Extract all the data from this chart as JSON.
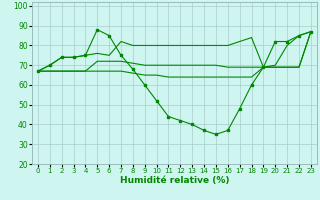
{
  "xlabel": "Humidité relative (%)",
  "background_color": "#cef5f0",
  "grid_color": "#aacccc",
  "line_color": "#008800",
  "xlim": [
    -0.5,
    23.5
  ],
  "ylim": [
    20,
    102
  ],
  "yticks": [
    20,
    30,
    40,
    50,
    60,
    70,
    80,
    90,
    100
  ],
  "xticks": [
    0,
    1,
    2,
    3,
    4,
    5,
    6,
    7,
    8,
    9,
    10,
    11,
    12,
    13,
    14,
    15,
    16,
    17,
    18,
    19,
    20,
    21,
    22,
    23
  ],
  "series": [
    {
      "name": "line1_upper",
      "x": [
        0,
        1,
        2,
        3,
        4,
        5,
        6,
        7,
        8,
        9,
        10,
        11,
        12,
        13,
        14,
        15,
        16,
        17,
        18,
        19,
        20,
        21,
        22,
        23
      ],
      "y": [
        67,
        70,
        74,
        74,
        75,
        76,
        75,
        82,
        80,
        80,
        80,
        80,
        80,
        80,
        80,
        80,
        80,
        82,
        84,
        69,
        70,
        80,
        85,
        87
      ],
      "has_markers": false
    },
    {
      "name": "line2_dip",
      "x": [
        0,
        1,
        2,
        3,
        4,
        5,
        6,
        7,
        8,
        9,
        10,
        11,
        12,
        13,
        14,
        15,
        16,
        17,
        18,
        19,
        20,
        21,
        22,
        23
      ],
      "y": [
        67,
        70,
        74,
        74,
        75,
        88,
        85,
        75,
        68,
        60,
        52,
        44,
        42,
        40,
        37,
        35,
        37,
        48,
        60,
        69,
        82,
        82,
        85,
        87
      ],
      "has_markers": true
    },
    {
      "name": "line3_lower_flat",
      "x": [
        0,
        1,
        2,
        3,
        4,
        5,
        6,
        7,
        8,
        9,
        10,
        11,
        12,
        13,
        14,
        15,
        16,
        17,
        18,
        19,
        20,
        21,
        22,
        23
      ],
      "y": [
        67,
        67,
        67,
        67,
        67,
        67,
        67,
        67,
        66,
        65,
        65,
        64,
        64,
        64,
        64,
        64,
        64,
        64,
        64,
        69,
        69,
        69,
        69,
        87
      ],
      "has_markers": false
    },
    {
      "name": "line4_mid_flat",
      "x": [
        0,
        1,
        2,
        3,
        4,
        5,
        6,
        7,
        8,
        9,
        10,
        11,
        12,
        13,
        14,
        15,
        16,
        17,
        18,
        19,
        20,
        21,
        22,
        23
      ],
      "y": [
        67,
        67,
        67,
        67,
        67,
        72,
        72,
        72,
        71,
        70,
        70,
        70,
        70,
        70,
        70,
        70,
        69,
        69,
        69,
        69,
        69,
        69,
        69,
        87
      ],
      "has_markers": false
    }
  ]
}
